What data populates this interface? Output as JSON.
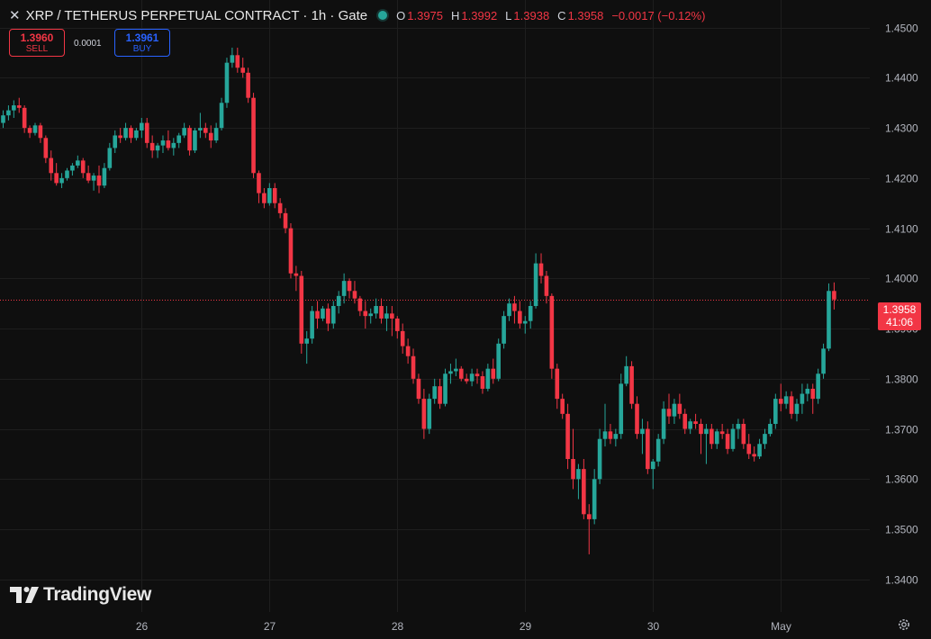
{
  "header": {
    "close_glyph": "✕",
    "title": "XRP / TETHERUS PERPETUAL CONTRACT · 1h · Gate",
    "status_color": "#26a69a",
    "ohlc": [
      {
        "label": "O",
        "value": "1.3975"
      },
      {
        "label": "H",
        "value": "1.3992"
      },
      {
        "label": "L",
        "value": "1.3938"
      },
      {
        "label": "C",
        "value": "1.3958"
      }
    ],
    "change": "−0.0017 (−0.12%)"
  },
  "trade": {
    "sell_price": "1.3960",
    "sell_label": "SELL",
    "spread": "0.0001",
    "buy_price": "1.3961",
    "buy_label": "BUY"
  },
  "logo_text": "TradingView",
  "price_badge": {
    "price": "1.3958",
    "countdown": "41:06"
  },
  "colors": {
    "up": "#26a69a",
    "down": "#f23645",
    "background": "#0f0f0f",
    "grid": "#1e1e1e"
  },
  "chart_data": {
    "type": "candlestick",
    "y_ticks": [
      "1.4500",
      "1.4400",
      "1.4300",
      "1.4200",
      "1.4100",
      "1.4000",
      "1.3900",
      "1.3800",
      "1.3700",
      "1.3600",
      "1.3500",
      "1.3400"
    ],
    "ylim": [
      1.3335,
      1.4555
    ],
    "x_ticks": [
      {
        "label": "26",
        "index": 26
      },
      {
        "label": "27",
        "index": 50
      },
      {
        "label": "28",
        "index": 74
      },
      {
        "label": "29",
        "index": 98
      },
      {
        "label": "30",
        "index": 122
      },
      {
        "label": "May",
        "index": 146
      }
    ],
    "last_price": 1.3958,
    "grid": true,
    "candles": [
      [
        1.431,
        1.4335,
        1.43,
        1.4325
      ],
      [
        1.4325,
        1.4345,
        1.4315,
        1.4335
      ],
      [
        1.4335,
        1.4355,
        1.432,
        1.4345
      ],
      [
        1.4345,
        1.436,
        1.433,
        1.434
      ],
      [
        1.434,
        1.4345,
        1.429,
        1.43
      ],
      [
        1.43,
        1.4305,
        1.428,
        1.429
      ],
      [
        1.429,
        1.431,
        1.4285,
        1.4305
      ],
      [
        1.4305,
        1.431,
        1.427,
        1.428
      ],
      [
        1.428,
        1.4285,
        1.423,
        1.424
      ],
      [
        1.424,
        1.4255,
        1.4195,
        1.421
      ],
      [
        1.421,
        1.423,
        1.4185,
        1.419
      ],
      [
        1.419,
        1.421,
        1.418,
        1.42
      ],
      [
        1.42,
        1.422,
        1.4195,
        1.4215
      ],
      [
        1.4215,
        1.423,
        1.4205,
        1.4225
      ],
      [
        1.4225,
        1.4245,
        1.422,
        1.4235
      ],
      [
        1.4235,
        1.424,
        1.42,
        1.421
      ],
      [
        1.421,
        1.4225,
        1.419,
        1.4195
      ],
      [
        1.4195,
        1.421,
        1.4175,
        1.4205
      ],
      [
        1.4205,
        1.4225,
        1.417,
        1.4185
      ],
      [
        1.4185,
        1.423,
        1.418,
        1.422
      ],
      [
        1.422,
        1.427,
        1.4215,
        1.426
      ],
      [
        1.426,
        1.4295,
        1.425,
        1.4285
      ],
      [
        1.4285,
        1.43,
        1.427,
        1.428
      ],
      [
        1.428,
        1.431,
        1.4275,
        1.43
      ],
      [
        1.43,
        1.4305,
        1.427,
        1.428
      ],
      [
        1.428,
        1.43,
        1.4275,
        1.4295
      ],
      [
        1.4295,
        1.432,
        1.428,
        1.431
      ],
      [
        1.431,
        1.432,
        1.426,
        1.427
      ],
      [
        1.427,
        1.4285,
        1.424,
        1.4255
      ],
      [
        1.4255,
        1.427,
        1.424,
        1.4265
      ],
      [
        1.4265,
        1.4285,
        1.425,
        1.4275
      ],
      [
        1.4275,
        1.4295,
        1.4255,
        1.426
      ],
      [
        1.426,
        1.428,
        1.4245,
        1.427
      ],
      [
        1.427,
        1.429,
        1.426,
        1.4285
      ],
      [
        1.4285,
        1.431,
        1.428,
        1.43
      ],
      [
        1.43,
        1.4305,
        1.4245,
        1.4255
      ],
      [
        1.4255,
        1.43,
        1.425,
        1.4295
      ],
      [
        1.4295,
        1.433,
        1.428,
        1.43
      ],
      [
        1.43,
        1.431,
        1.428,
        1.429
      ],
      [
        1.429,
        1.4305,
        1.426,
        1.4275
      ],
      [
        1.4275,
        1.431,
        1.427,
        1.43
      ],
      [
        1.43,
        1.436,
        1.4295,
        1.435
      ],
      [
        1.435,
        1.444,
        1.434,
        1.443
      ],
      [
        1.443,
        1.446,
        1.442,
        1.4445
      ],
      [
        1.4445,
        1.446,
        1.441,
        1.442
      ],
      [
        1.442,
        1.444,
        1.44,
        1.441
      ],
      [
        1.441,
        1.442,
        1.435,
        1.436
      ],
      [
        1.436,
        1.437,
        1.42,
        1.421
      ],
      [
        1.421,
        1.4215,
        1.415,
        1.417
      ],
      [
        1.417,
        1.418,
        1.414,
        1.415
      ],
      [
        1.415,
        1.419,
        1.4145,
        1.418
      ],
      [
        1.418,
        1.419,
        1.414,
        1.415
      ],
      [
        1.415,
        1.416,
        1.412,
        1.413
      ],
      [
        1.413,
        1.414,
        1.409,
        1.41
      ],
      [
        1.41,
        1.411,
        1.4,
        1.401
      ],
      [
        1.401,
        1.4025,
        1.3975,
        1.4005
      ],
      [
        1.4005,
        1.4015,
        1.385,
        1.387
      ],
      [
        1.387,
        1.3895,
        1.383,
        1.388
      ],
      [
        1.388,
        1.3945,
        1.387,
        1.3935
      ],
      [
        1.3935,
        1.3955,
        1.39,
        1.392
      ],
      [
        1.392,
        1.3945,
        1.3915,
        1.394
      ],
      [
        1.394,
        1.395,
        1.3895,
        1.391
      ],
      [
        1.391,
        1.3955,
        1.39,
        1.3945
      ],
      [
        1.3945,
        1.3975,
        1.393,
        1.3965
      ],
      [
        1.3965,
        1.401,
        1.395,
        1.3995
      ],
      [
        1.3995,
        1.4,
        1.396,
        1.3975
      ],
      [
        1.3975,
        1.3995,
        1.395,
        1.396
      ],
      [
        1.396,
        1.3965,
        1.3925,
        1.3935
      ],
      [
        1.3935,
        1.3955,
        1.39,
        1.3925
      ],
      [
        1.3925,
        1.394,
        1.391,
        1.393
      ],
      [
        1.393,
        1.396,
        1.392,
        1.3945
      ],
      [
        1.3945,
        1.396,
        1.391,
        1.392
      ],
      [
        1.392,
        1.3945,
        1.3895,
        1.393
      ],
      [
        1.393,
        1.3945,
        1.3885,
        1.392
      ],
      [
        1.392,
        1.3925,
        1.388,
        1.3895
      ],
      [
        1.3895,
        1.391,
        1.385,
        1.3865
      ],
      [
        1.3865,
        1.388,
        1.383,
        1.3845
      ],
      [
        1.3845,
        1.386,
        1.379,
        1.38
      ],
      [
        1.38,
        1.381,
        1.375,
        1.376
      ],
      [
        1.376,
        1.378,
        1.368,
        1.37
      ],
      [
        1.37,
        1.377,
        1.369,
        1.376
      ],
      [
        1.376,
        1.38,
        1.375,
        1.3785
      ],
      [
        1.3785,
        1.38,
        1.374,
        1.375
      ],
      [
        1.375,
        1.382,
        1.3745,
        1.381
      ],
      [
        1.381,
        1.383,
        1.379,
        1.3815
      ],
      [
        1.3815,
        1.384,
        1.3805,
        1.382
      ],
      [
        1.382,
        1.3825,
        1.3795,
        1.38
      ],
      [
        1.38,
        1.381,
        1.379,
        1.3795
      ],
      [
        1.3795,
        1.382,
        1.3785,
        1.381
      ],
      [
        1.381,
        1.382,
        1.379,
        1.3805
      ],
      [
        1.3805,
        1.3815,
        1.377,
        1.378
      ],
      [
        1.378,
        1.383,
        1.3775,
        1.382
      ],
      [
        1.382,
        1.384,
        1.379,
        1.38
      ],
      [
        1.38,
        1.388,
        1.3795,
        1.387
      ],
      [
        1.387,
        1.3935,
        1.386,
        1.3925
      ],
      [
        1.3925,
        1.396,
        1.3915,
        1.395
      ],
      [
        1.395,
        1.3965,
        1.391,
        1.3935
      ],
      [
        1.3935,
        1.3955,
        1.39,
        1.391
      ],
      [
        1.391,
        1.3925,
        1.389,
        1.3915
      ],
      [
        1.3915,
        1.3955,
        1.39,
        1.3945
      ],
      [
        1.3945,
        1.405,
        1.394,
        1.403
      ],
      [
        1.403,
        1.405,
        1.399,
        1.4005
      ],
      [
        1.4005,
        1.4015,
        1.395,
        1.3965
      ],
      [
        1.3965,
        1.397,
        1.38,
        1.382
      ],
      [
        1.382,
        1.383,
        1.374,
        1.376
      ],
      [
        1.376,
        1.377,
        1.372,
        1.373
      ],
      [
        1.373,
        1.375,
        1.362,
        1.364
      ],
      [
        1.364,
        1.37,
        1.358,
        1.36
      ],
      [
        1.36,
        1.363,
        1.356,
        1.362
      ],
      [
        1.362,
        1.364,
        1.352,
        1.353
      ],
      [
        1.353,
        1.355,
        1.345,
        1.352
      ],
      [
        1.352,
        1.362,
        1.351,
        1.36
      ],
      [
        1.36,
        1.37,
        1.359,
        1.368
      ],
      [
        1.368,
        1.375,
        1.3665,
        1.3695
      ],
      [
        1.3695,
        1.371,
        1.367,
        1.368
      ],
      [
        1.368,
        1.37,
        1.3665,
        1.369
      ],
      [
        1.369,
        1.381,
        1.368,
        1.379
      ],
      [
        1.379,
        1.3845,
        1.3785,
        1.3825
      ],
      [
        1.3825,
        1.3835,
        1.374,
        1.375
      ],
      [
        1.375,
        1.3765,
        1.368,
        1.369
      ],
      [
        1.369,
        1.372,
        1.365,
        1.37
      ],
      [
        1.37,
        1.3715,
        1.361,
        1.362
      ],
      [
        1.362,
        1.364,
        1.358,
        1.3635
      ],
      [
        1.3635,
        1.369,
        1.3625,
        1.368
      ],
      [
        1.368,
        1.3755,
        1.367,
        1.374
      ],
      [
        1.374,
        1.377,
        1.371,
        1.3725
      ],
      [
        1.3725,
        1.376,
        1.371,
        1.375
      ],
      [
        1.375,
        1.377,
        1.372,
        1.373
      ],
      [
        1.373,
        1.374,
        1.369,
        1.37
      ],
      [
        1.37,
        1.372,
        1.369,
        1.3715
      ],
      [
        1.3715,
        1.373,
        1.37,
        1.371
      ],
      [
        1.371,
        1.372,
        1.365,
        1.369
      ],
      [
        1.369,
        1.371,
        1.363,
        1.37
      ],
      [
        1.37,
        1.371,
        1.366,
        1.367
      ],
      [
        1.367,
        1.37,
        1.366,
        1.3695
      ],
      [
        1.3695,
        1.371,
        1.368,
        1.369
      ],
      [
        1.369,
        1.37,
        1.365,
        1.366
      ],
      [
        1.366,
        1.371,
        1.3655,
        1.37
      ],
      [
        1.37,
        1.372,
        1.368,
        1.371
      ],
      [
        1.371,
        1.372,
        1.366,
        1.367
      ],
      [
        1.367,
        1.369,
        1.364,
        1.365
      ],
      [
        1.365,
        1.3665,
        1.3635,
        1.3645
      ],
      [
        1.3645,
        1.368,
        1.364,
        1.367
      ],
      [
        1.367,
        1.37,
        1.366,
        1.369
      ],
      [
        1.369,
        1.372,
        1.3685,
        1.371
      ],
      [
        1.371,
        1.377,
        1.37,
        1.376
      ],
      [
        1.376,
        1.379,
        1.3735,
        1.375
      ],
      [
        1.375,
        1.3775,
        1.374,
        1.3765
      ],
      [
        1.3765,
        1.3775,
        1.372,
        1.373
      ],
      [
        1.373,
        1.376,
        1.3715,
        1.375
      ],
      [
        1.375,
        1.379,
        1.373,
        1.377
      ],
      [
        1.377,
        1.379,
        1.3755,
        1.378
      ],
      [
        1.378,
        1.379,
        1.373,
        1.376
      ],
      [
        1.376,
        1.382,
        1.375,
        1.381
      ],
      [
        1.381,
        1.387,
        1.38,
        1.386
      ],
      [
        1.386,
        1.399,
        1.3855,
        1.3975
      ],
      [
        1.3975,
        1.3992,
        1.3938,
        1.3958
      ]
    ]
  }
}
